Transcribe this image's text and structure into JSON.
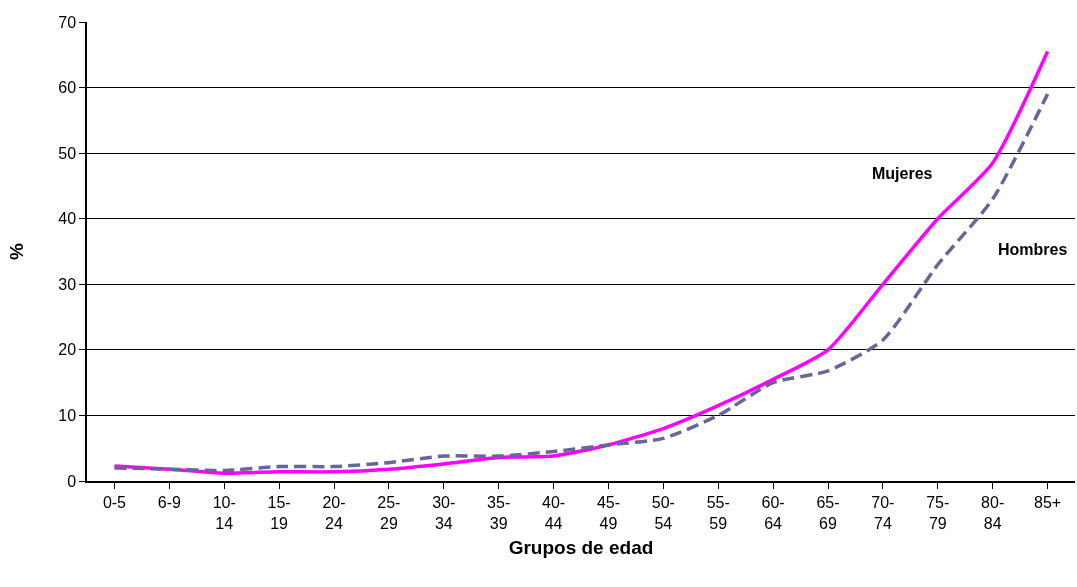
{
  "chart_data": {
    "type": "line",
    "xlabel": "Grupos de edad",
    "ylabel": "%",
    "categories": [
      "0-5",
      "6-9",
      "10-\n14",
      "15-\n19",
      "20-\n24",
      "25-\n29",
      "30-\n34",
      "35-\n39",
      "40-\n44",
      "45-\n49",
      "50-\n54",
      "55-\n59",
      "60-\n64",
      "65-\n69",
      "70-\n74",
      "75-\n79",
      "80-\n84",
      "85+"
    ],
    "series": [
      {
        "name": "Mujeres",
        "color": "#ff00ff",
        "line_style": "solid",
        "values": [
          2.3,
          1.8,
          1.2,
          1.4,
          1.4,
          1.8,
          2.6,
          3.6,
          3.8,
          5.5,
          8,
          11.5,
          15.5,
          20,
          30,
          40,
          48.5,
          65.5
        ]
      },
      {
        "name": "Hombres",
        "color": "#666699",
        "line_style": "dashed",
        "values": [
          2,
          1.8,
          1.6,
          2.2,
          2.2,
          2.8,
          3.8,
          3.8,
          4.5,
          5.5,
          6.5,
          10,
          15,
          16.8,
          21.5,
          33,
          43,
          59
        ]
      }
    ],
    "ylim": [
      0,
      70
    ],
    "yticks": [
      0,
      10,
      20,
      30,
      40,
      50,
      60,
      70
    ],
    "grid": "y",
    "marker": "none"
  }
}
